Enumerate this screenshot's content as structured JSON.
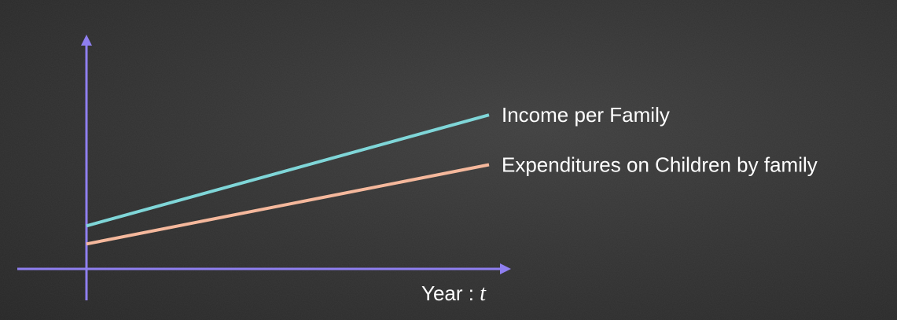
{
  "chart_data": {
    "type": "line",
    "title": "",
    "xlabel": "Year : ",
    "xlabel_variable": "t",
    "ylabel": "",
    "grid": false,
    "x": [
      0,
      1
    ],
    "series": [
      {
        "name": "Income per Family",
        "values": [
          0.95,
          3.4
        ],
        "color": "#7fd6d8"
      },
      {
        "name": "Expenditures on Children by family",
        "values": [
          0.55,
          2.3
        ],
        "color": "#f5b89c"
      }
    ],
    "xlim": [
      0,
      1.86
    ],
    "ylim": [
      0,
      5
    ],
    "axis_color": "#8f7ff0",
    "background_color": "#333333"
  }
}
